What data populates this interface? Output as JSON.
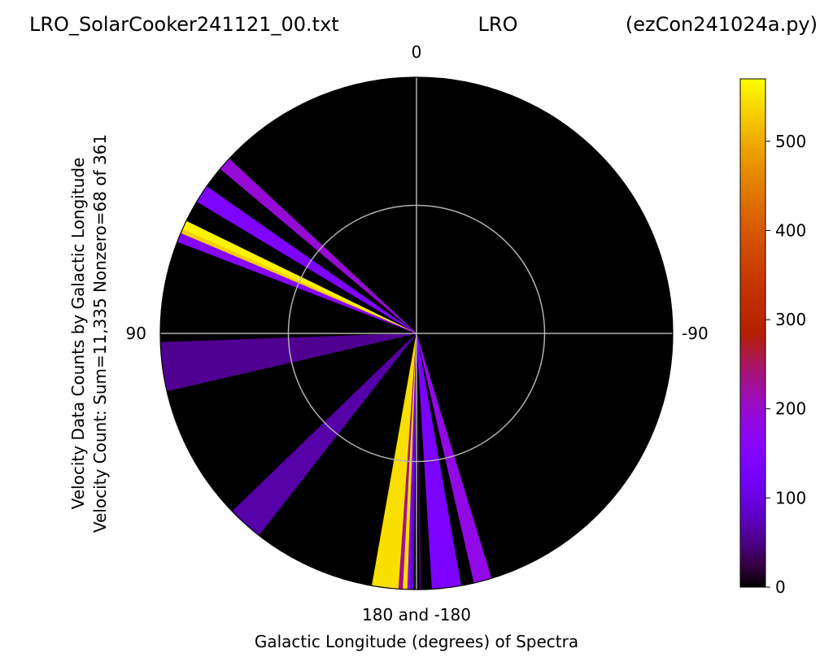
{
  "header": {
    "left": "LRO_SolarCooker241121_00.txt",
    "center": "LRO",
    "right": "(ezCon241024a.py)"
  },
  "chart_data": {
    "type": "polar-wedge",
    "direction_labels": {
      "top": "0",
      "left": "90",
      "right": "-90",
      "bottom": "180 and -180"
    },
    "xlabel": "Galactic Longitude (degrees) of Spectra",
    "ylabel_line1": "Velocity Data Counts by Galactic Longitude",
    "ylabel_line2": "Velocity Count: Sum=11,335 Nonzero=68 of 361",
    "inner_ring_fraction": 0.5,
    "colorbar": {
      "colormap": "gnuplot",
      "min": 0,
      "max": 570,
      "ticks": [
        0,
        100,
        200,
        300,
        400,
        500
      ]
    },
    "wedges": [
      {
        "start": 47,
        "end": 50,
        "count": 195
      },
      {
        "start": 55,
        "end": 59,
        "count": 140
      },
      {
        "start": 64,
        "end": 66,
        "count": 560
      },
      {
        "start": 66,
        "end": 67,
        "count": 530
      },
      {
        "start": 67,
        "end": 69,
        "count": 160
      },
      {
        "start": 92,
        "end": 103,
        "count": 55
      },
      {
        "start": 134,
        "end": 142,
        "count": 65
      },
      {
        "start": 170,
        "end": 176,
        "count": 545
      },
      {
        "start": 176,
        "end": 177,
        "count": 230
      },
      {
        "start": 177,
        "end": 178,
        "count": 545
      },
      {
        "start": 178,
        "end": 178.6,
        "count": 170
      },
      {
        "start": 178.6,
        "end": 179.3,
        "count": 90
      },
      {
        "start": -179.3,
        "end": -179,
        "count": 40
      },
      {
        "start": -176.5,
        "end": -170,
        "count": 135
      },
      {
        "start": -167,
        "end": -163,
        "count": 185
      }
    ]
  }
}
